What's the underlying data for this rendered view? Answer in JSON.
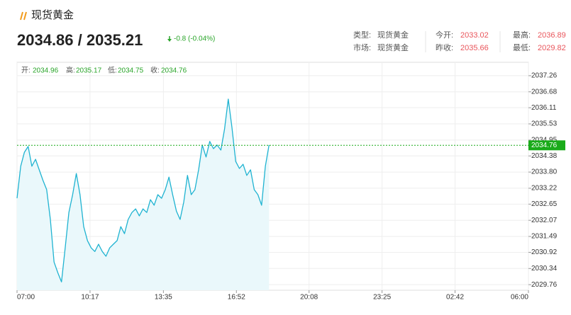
{
  "header": {
    "title": "现货黄金",
    "price": "2034.86 / 2035.21",
    "change": "-0.8 (-0.04%)",
    "info": [
      {
        "label": "类型:",
        "value": "现货黄金"
      },
      {
        "label": "今开:",
        "value": 2033.02
      },
      {
        "label": "最高:",
        "value": 2036.89
      },
      {
        "label": "市场:",
        "value": "现货黄金"
      },
      {
        "label": "昨收:",
        "value": 2035.66
      },
      {
        "label": "最低:",
        "value": 2029.82
      }
    ]
  },
  "chart_data": {
    "type": "line",
    "ohlc": [
      {
        "label": "开:",
        "value": 2034.96
      },
      {
        "label": "高:",
        "value": 2035.17
      },
      {
        "label": "低:",
        "value": 2034.75
      },
      {
        "label": "收:",
        "value": 2034.76
      }
    ],
    "x": [
      "07:00",
      "07:10",
      "07:20",
      "07:30",
      "07:40",
      "07:50",
      "08:00",
      "08:10",
      "08:20",
      "08:30",
      "08:40",
      "08:50",
      "09:00",
      "09:10",
      "09:20",
      "09:30",
      "09:40",
      "09:50",
      "10:00",
      "10:10",
      "10:20",
      "10:30",
      "10:40",
      "10:50",
      "11:00",
      "11:10",
      "11:20",
      "11:30",
      "11:40",
      "11:50",
      "12:00",
      "12:10",
      "12:20",
      "12:30",
      "12:40",
      "12:50",
      "13:00",
      "13:10",
      "13:20",
      "13:30",
      "13:40",
      "13:50",
      "14:00",
      "14:10",
      "14:20",
      "14:30",
      "14:40",
      "14:50",
      "15:00",
      "15:10",
      "15:20",
      "15:30",
      "15:40",
      "15:50",
      "16:00",
      "16:10",
      "16:20",
      "16:30",
      "16:40",
      "16:50",
      "17:00",
      "17:10",
      "17:20",
      "17:30",
      "17:40",
      "17:50",
      "18:00",
      "18:10",
      "18:20"
    ],
    "values": [
      2032.86,
      2034.01,
      2034.51,
      2034.72,
      2034.01,
      2034.26,
      2033.88,
      2033.5,
      2033.17,
      2032.1,
      2030.57,
      2030.19,
      2029.86,
      2031.08,
      2032.35,
      2032.99,
      2033.75,
      2032.99,
      2031.84,
      2031.34,
      2031.08,
      2030.95,
      2031.21,
      2030.95,
      2030.78,
      2031.08,
      2031.21,
      2031.34,
      2031.84,
      2031.59,
      2032.1,
      2032.35,
      2032.48,
      2032.23,
      2032.48,
      2032.35,
      2032.81,
      2032.61,
      2032.99,
      2032.86,
      2033.17,
      2033.62,
      2032.99,
      2032.4,
      2032.1,
      2032.73,
      2033.68,
      2032.99,
      2033.17,
      2033.88,
      2034.77,
      2034.34,
      2034.9,
      2034.64,
      2034.77,
      2034.59,
      2035.35,
      2036.42,
      2035.4,
      2034.18,
      2033.93,
      2034.08,
      2033.68,
      2033.88,
      2033.17,
      2032.99,
      2032.61,
      2034.01,
      2034.77
    ],
    "color": "#1fb3d1",
    "area_color": "#eaf8fb",
    "last_price": 2034.76,
    "last_price_color": "#1aab1a",
    "xlim": [
      "07:00",
      "06:00"
    ],
    "xticks": [
      "07:00",
      "10:17",
      "13:35",
      "16:52",
      "20:08",
      "23:25",
      "02:42",
      "06:00"
    ],
    "ylim": [
      2029.56,
      2037.74
    ],
    "yticks": [
      2037.26,
      2036.68,
      2036.11,
      2035.53,
      2034.95,
      2034.38,
      {
        "value": 2033.8,
        "label": "2033.80"
      },
      2033.22,
      2032.65,
      2032.07,
      2031.49,
      2030.92,
      2030.34,
      2029.76
    ],
    "grid": true
  }
}
